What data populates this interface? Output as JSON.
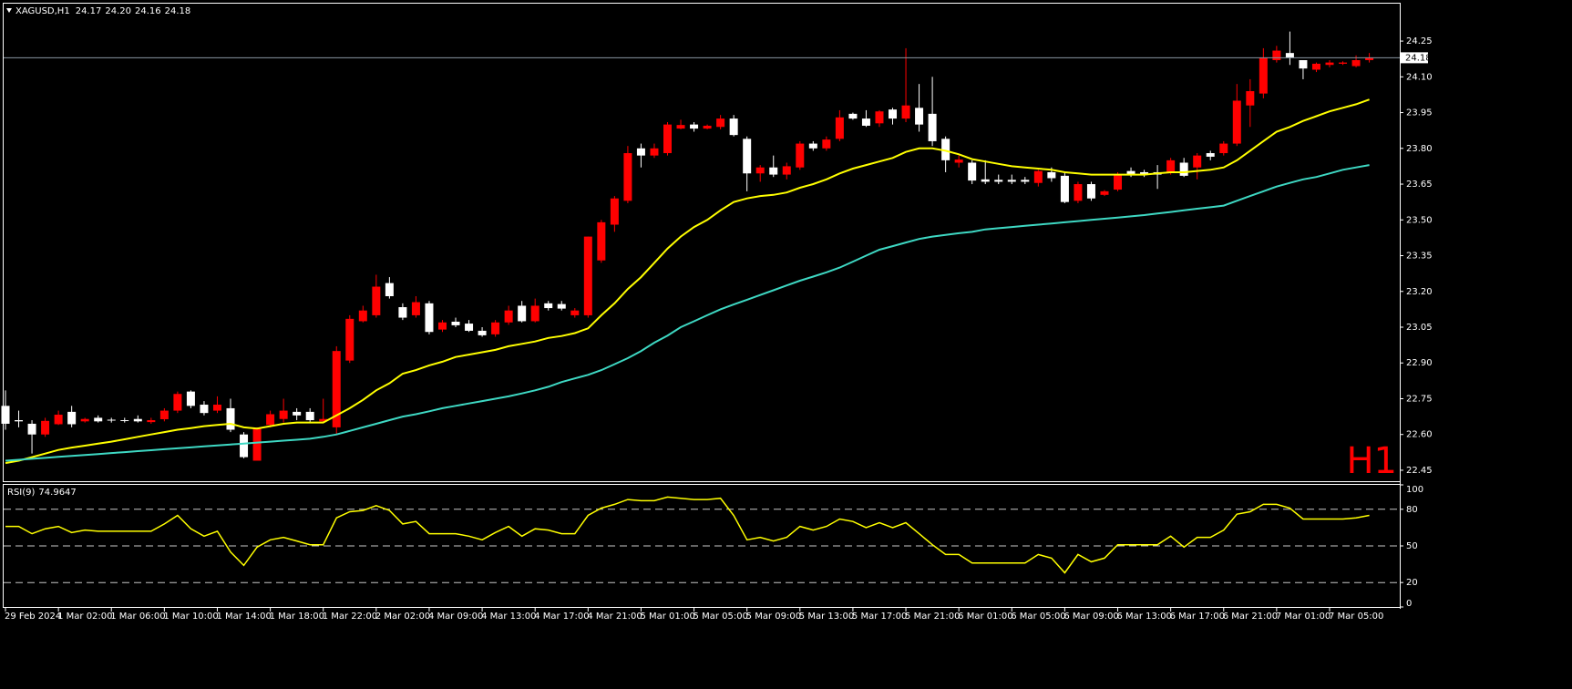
{
  "chart_data": [
    {
      "type": "candlestick",
      "title": "XAGUSD,H1",
      "quote": [
        "24.17",
        "24.20",
        "24.16",
        "24.18"
      ],
      "timeframe_label": "H1",
      "up_color": "#ff0000",
      "down_color": "#ffffff",
      "price_line_color": "#8996a3",
      "categories": [
        "29 Feb 2024",
        null,
        null,
        null,
        "1 Mar 02:00",
        null,
        null,
        null,
        "1 Mar 06:00",
        null,
        null,
        null,
        "1 Mar 10:00",
        null,
        null,
        null,
        "1 Mar 14:00",
        null,
        null,
        null,
        "1 Mar 18:00",
        null,
        null,
        null,
        "1 Mar 22:00",
        null,
        null,
        null,
        "2 Mar 02:00",
        null,
        null,
        null,
        "4 Mar 09:00",
        null,
        null,
        null,
        "4 Mar 13:00",
        null,
        null,
        null,
        "4 Mar 17:00",
        null,
        null,
        null,
        "4 Mar 21:00",
        null,
        null,
        null,
        "5 Mar 01:00",
        null,
        null,
        null,
        "5 Mar 05:00",
        null,
        null,
        null,
        "5 Mar 09:00",
        null,
        null,
        null,
        "5 Mar 13:00",
        null,
        null,
        null,
        "5 Mar 17:00",
        null,
        null,
        null,
        "5 Mar 21:00",
        null,
        null,
        null,
        "6 Mar 01:00",
        null,
        null,
        null,
        "6 Mar 05:00",
        null,
        null,
        null,
        "6 Mar 09:00",
        null,
        null,
        null,
        "6 Mar 13:00",
        null,
        null,
        null,
        "6 Mar 17:00",
        null,
        null,
        null,
        "6 Mar 21:00",
        null,
        null,
        null,
        "7 Mar 01:00",
        null,
        null,
        null,
        "7 Mar 05:00",
        null,
        null,
        null
      ],
      "open": [
        22.72,
        22.66,
        22.645,
        22.6,
        22.643,
        22.695,
        22.655,
        22.67,
        22.662,
        22.66,
        22.665,
        22.652,
        22.664,
        22.7,
        22.78,
        22.725,
        22.7,
        22.71,
        22.6,
        22.49,
        22.64,
        22.665,
        22.695,
        22.695,
        22.655,
        22.63,
        22.91,
        23.075,
        23.1,
        23.235,
        23.134,
        23.1,
        23.15,
        23.04,
        23.073,
        23.065,
        23.035,
        23.02,
        23.07,
        23.14,
        23.075,
        23.15,
        23.147,
        23.1,
        23.1,
        23.33,
        23.48,
        23.58,
        23.8,
        23.77,
        23.78,
        23.883,
        23.9,
        23.883,
        23.89,
        23.925,
        23.84,
        23.695,
        23.72,
        23.69,
        23.72,
        23.82,
        23.8,
        23.84,
        23.945,
        23.925,
        23.905,
        23.963,
        23.925,
        23.97,
        23.945,
        23.84,
        23.74,
        23.74,
        23.67,
        23.668,
        23.668,
        23.668,
        23.655,
        23.7,
        23.685,
        23.58,
        23.65,
        23.605,
        23.627,
        23.705,
        23.7,
        23.7,
        23.7,
        23.74,
        23.72,
        23.78,
        23.78,
        23.82,
        23.98,
        24.03,
        24.17,
        24.2,
        24.17,
        24.13,
        24.15,
        24.155,
        24.145,
        24.17
      ],
      "high": [
        22.785,
        22.7,
        22.66,
        22.67,
        22.7,
        22.72,
        22.67,
        22.68,
        22.67,
        22.67,
        22.68,
        22.67,
        22.71,
        22.78,
        22.785,
        22.74,
        22.76,
        22.75,
        22.61,
        22.63,
        22.7,
        22.75,
        22.71,
        22.71,
        22.75,
        22.97,
        23.1,
        23.14,
        23.27,
        23.26,
        23.15,
        23.18,
        23.16,
        23.08,
        23.09,
        23.08,
        23.05,
        23.08,
        23.14,
        23.16,
        23.17,
        23.16,
        23.16,
        23.13,
        23.43,
        23.5,
        23.6,
        23.81,
        23.82,
        23.82,
        23.91,
        23.92,
        23.91,
        23.9,
        23.94,
        23.94,
        23.85,
        23.73,
        23.77,
        23.74,
        23.83,
        23.83,
        23.85,
        23.96,
        23.95,
        23.96,
        23.96,
        23.97,
        24.22,
        24.07,
        24.1,
        23.85,
        23.77,
        23.75,
        23.75,
        23.69,
        23.69,
        23.68,
        23.71,
        23.72,
        23.7,
        23.66,
        23.66,
        23.625,
        23.7,
        23.72,
        23.71,
        23.73,
        23.76,
        23.76,
        23.78,
        23.79,
        23.83,
        24.07,
        24.09,
        24.22,
        24.23,
        24.29,
        24.17,
        24.16,
        24.17,
        24.165,
        24.19,
        24.2
      ],
      "low": [
        22.62,
        22.63,
        22.52,
        22.59,
        22.64,
        22.63,
        22.65,
        22.65,
        22.65,
        22.65,
        22.65,
        22.645,
        22.655,
        22.69,
        22.71,
        22.68,
        22.69,
        22.61,
        22.5,
        22.49,
        22.63,
        22.65,
        22.66,
        22.65,
        22.65,
        22.6,
        22.9,
        23.07,
        23.09,
        23.17,
        23.08,
        23.09,
        23.02,
        23.03,
        23.05,
        23.03,
        23.01,
        23.01,
        23.06,
        23.07,
        23.07,
        23.12,
        23.12,
        23.09,
        23.09,
        23.32,
        23.45,
        23.57,
        23.72,
        23.76,
        23.77,
        23.88,
        23.87,
        23.88,
        23.88,
        23.85,
        23.62,
        23.66,
        23.68,
        23.67,
        23.71,
        23.79,
        23.79,
        23.83,
        23.92,
        23.89,
        23.89,
        23.9,
        23.91,
        23.87,
        23.81,
        23.7,
        23.72,
        23.65,
        23.65,
        23.65,
        23.65,
        23.65,
        23.64,
        23.66,
        23.57,
        23.57,
        23.58,
        23.6,
        23.62,
        23.68,
        23.68,
        23.63,
        23.69,
        23.68,
        23.67,
        23.75,
        23.77,
        23.81,
        23.89,
        24.01,
        24.16,
        24.15,
        24.09,
        24.12,
        24.14,
        24.15,
        24.14,
        24.16
      ],
      "close": [
        22.645,
        22.655,
        22.6,
        22.657,
        22.683,
        22.643,
        22.665,
        22.655,
        22.66,
        22.658,
        22.655,
        22.66,
        22.7,
        22.77,
        22.72,
        22.69,
        22.725,
        22.62,
        22.505,
        22.625,
        22.685,
        22.7,
        22.68,
        22.66,
        22.665,
        22.95,
        23.085,
        23.12,
        23.22,
        23.18,
        23.09,
        23.155,
        23.03,
        23.07,
        23.058,
        23.035,
        23.016,
        23.07,
        23.12,
        23.075,
        23.14,
        23.13,
        23.128,
        23.12,
        23.43,
        23.49,
        23.59,
        23.78,
        23.77,
        23.8,
        23.9,
        23.898,
        23.883,
        23.895,
        23.925,
        23.856,
        23.695,
        23.72,
        23.69,
        23.725,
        23.82,
        23.8,
        23.837,
        23.93,
        23.925,
        23.895,
        23.955,
        23.925,
        23.98,
        23.9,
        23.83,
        23.75,
        23.753,
        23.665,
        23.66,
        23.66,
        23.66,
        23.66,
        23.705,
        23.675,
        23.575,
        23.65,
        23.59,
        23.62,
        23.69,
        23.69,
        23.69,
        23.69,
        23.75,
        23.685,
        23.77,
        23.765,
        23.82,
        24.0,
        24.04,
        24.18,
        24.21,
        24.18,
        24.135,
        24.155,
        24.16,
        24.16,
        24.17,
        24.18
      ],
      "series": [
        {
          "color": "#ffff00",
          "values": [
            22.48,
            22.49,
            22.505,
            22.52,
            22.535,
            22.545,
            22.553,
            22.562,
            22.57,
            22.58,
            22.59,
            22.6,
            22.61,
            22.62,
            22.627,
            22.635,
            22.64,
            22.645,
            22.63,
            22.625,
            22.635,
            22.645,
            22.65,
            22.65,
            22.65,
            22.68,
            22.71,
            22.745,
            22.785,
            22.815,
            22.855,
            22.87,
            22.89,
            22.905,
            22.925,
            22.935,
            22.945,
            22.955,
            22.97,
            22.98,
            22.99,
            23.005,
            23.013,
            23.025,
            23.045,
            23.1,
            23.15,
            23.21,
            23.26,
            23.32,
            23.38,
            23.43,
            23.47,
            23.5,
            23.54,
            23.575,
            23.59,
            23.6,
            23.605,
            23.615,
            23.635,
            23.65,
            23.67,
            23.695,
            23.715,
            23.73,
            23.745,
            23.76,
            23.785,
            23.8,
            23.8,
            23.79,
            23.775,
            23.755,
            23.745,
            23.735,
            23.725,
            23.72,
            23.715,
            23.71,
            23.7,
            23.695,
            23.69,
            23.69,
            23.69,
            23.69,
            23.69,
            23.695,
            23.7,
            23.7,
            23.705,
            23.71,
            23.72,
            23.75,
            23.79,
            23.83,
            23.87,
            23.89,
            23.915,
            23.935,
            23.955,
            23.97,
            23.985,
            24.005
          ]
        },
        {
          "color": "#3ed8c3",
          "values": [
            22.49,
            22.494,
            22.498,
            22.502,
            22.506,
            22.51,
            22.514,
            22.518,
            22.522,
            22.526,
            22.53,
            22.534,
            22.538,
            22.542,
            22.546,
            22.55,
            22.554,
            22.558,
            22.562,
            22.566,
            22.57,
            22.574,
            22.578,
            22.582,
            22.59,
            22.6,
            22.615,
            22.63,
            22.645,
            22.66,
            22.675,
            22.685,
            22.697,
            22.71,
            22.72,
            22.73,
            22.74,
            22.75,
            22.76,
            22.772,
            22.785,
            22.8,
            22.82,
            22.835,
            22.85,
            22.87,
            22.895,
            22.92,
            22.95,
            22.985,
            23.015,
            23.05,
            23.075,
            23.1,
            23.125,
            23.145,
            23.165,
            23.185,
            23.205,
            23.225,
            23.245,
            23.262,
            23.28,
            23.3,
            23.325,
            23.35,
            23.375,
            23.39,
            23.405,
            23.42,
            23.43,
            23.437,
            23.444,
            23.45,
            23.46,
            23.465,
            23.47,
            23.475,
            23.48,
            23.485,
            23.49,
            23.495,
            23.5,
            23.505,
            23.51,
            23.515,
            23.52,
            23.527,
            23.533,
            23.54,
            23.547,
            23.553,
            23.56,
            23.58,
            23.6,
            23.62,
            23.64,
            23.655,
            23.67,
            23.68,
            23.695,
            23.71,
            23.72,
            23.73
          ]
        }
      ],
      "ylim": [
        22.404,
        24.407
      ],
      "yticks": [
        24.25,
        {
          "value": 24.1,
          "label": "24.10"
        },
        23.95,
        {
          "value": 23.8,
          "label": "23.80"
        },
        23.65,
        {
          "value": 23.5,
          "label": "23.50"
        },
        23.35,
        {
          "value": 23.2,
          "label": "23.20"
        },
        23.05,
        {
          "value": 22.9,
          "label": "22.90"
        },
        22.75,
        {
          "value": 22.6,
          "label": "22.60"
        },
        22.45
      ]
    },
    {
      "type": "line",
      "title": "RSI(9)",
      "color": "#ffff00",
      "values": [
        66,
        66,
        60,
        64,
        66,
        61,
        63,
        62,
        62,
        62,
        62,
        62,
        68,
        75,
        64,
        58,
        62,
        45,
        34,
        49,
        55,
        57,
        54,
        51,
        51,
        73,
        78,
        79,
        83,
        79,
        68,
        70,
        60,
        60,
        60,
        58,
        55,
        61,
        66,
        58,
        64,
        63,
        60,
        60,
        75,
        81,
        84,
        88,
        87,
        87,
        90,
        89,
        88,
        88,
        89,
        75,
        55,
        57,
        54,
        57,
        66,
        63,
        66,
        72,
        70,
        65,
        69,
        65,
        69,
        60,
        51,
        43,
        43,
        36,
        36,
        36,
        36,
        36,
        43,
        40,
        28,
        43,
        37,
        40,
        51,
        51,
        51,
        51,
        58,
        49,
        57,
        57,
        63,
        76,
        78,
        84,
        84,
        81,
        72,
        72,
        72,
        72,
        73,
        74.9647
      ],
      "ylim": [
        0,
        100
      ],
      "yticks": [
        100,
        80,
        50,
        20,
        0
      ],
      "levels": [
        80,
        50,
        20
      ]
    }
  ]
}
